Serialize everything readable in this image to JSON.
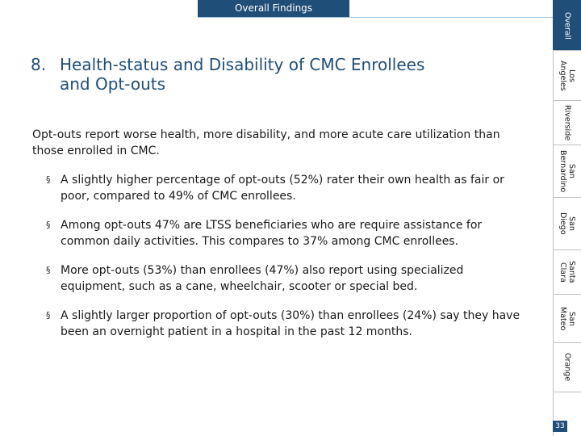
{
  "header": {
    "section_title": "Overall Findings"
  },
  "slide": {
    "number": "8.",
    "title_line1": "Health-status and Disability of CMC Enrollees",
    "title_line2": "and Opt-outs",
    "intro": "Opt-outs report worse health, more disability, and more acute care utilization than those enrolled in CMC.",
    "bullets": [
      "A slightly higher percentage of opt-outs (52%) rater their own health as fair or poor, compared to 49% of CMC enrollees.",
      "Among opt-outs 47% are LTSS beneficiaries who are require assistance for common daily activities. This compares to 37% among CMC enrollees.",
      "More opt-outs (53%) than enrollees (47%) also report using specialized equipment, such as a cane, wheelchair, scooter or special bed.",
      "A slightly larger proportion of opt-outs (30%) than enrollees (24%) say they have been an overnight patient in a hospital in the past 12 months."
    ],
    "bullet_marker": "§"
  },
  "sidebar": {
    "tabs": [
      {
        "label": "Overall",
        "active": true
      },
      {
        "label": "Los\nAngeles",
        "active": false
      },
      {
        "label": "Riverside",
        "active": false
      },
      {
        "label": "San\nBernardino",
        "active": false
      },
      {
        "label": "San\nDiego",
        "active": false
      },
      {
        "label": "Santa\nClara",
        "active": false
      },
      {
        "label": "San\nMateo",
        "active": false
      },
      {
        "label": "Orange",
        "active": false
      }
    ]
  },
  "footer": {
    "page_number": "33"
  },
  "colors": {
    "accent": "#1f4e79",
    "divider": "#9dc3e6",
    "tab_border": "#bfbfbf"
  }
}
